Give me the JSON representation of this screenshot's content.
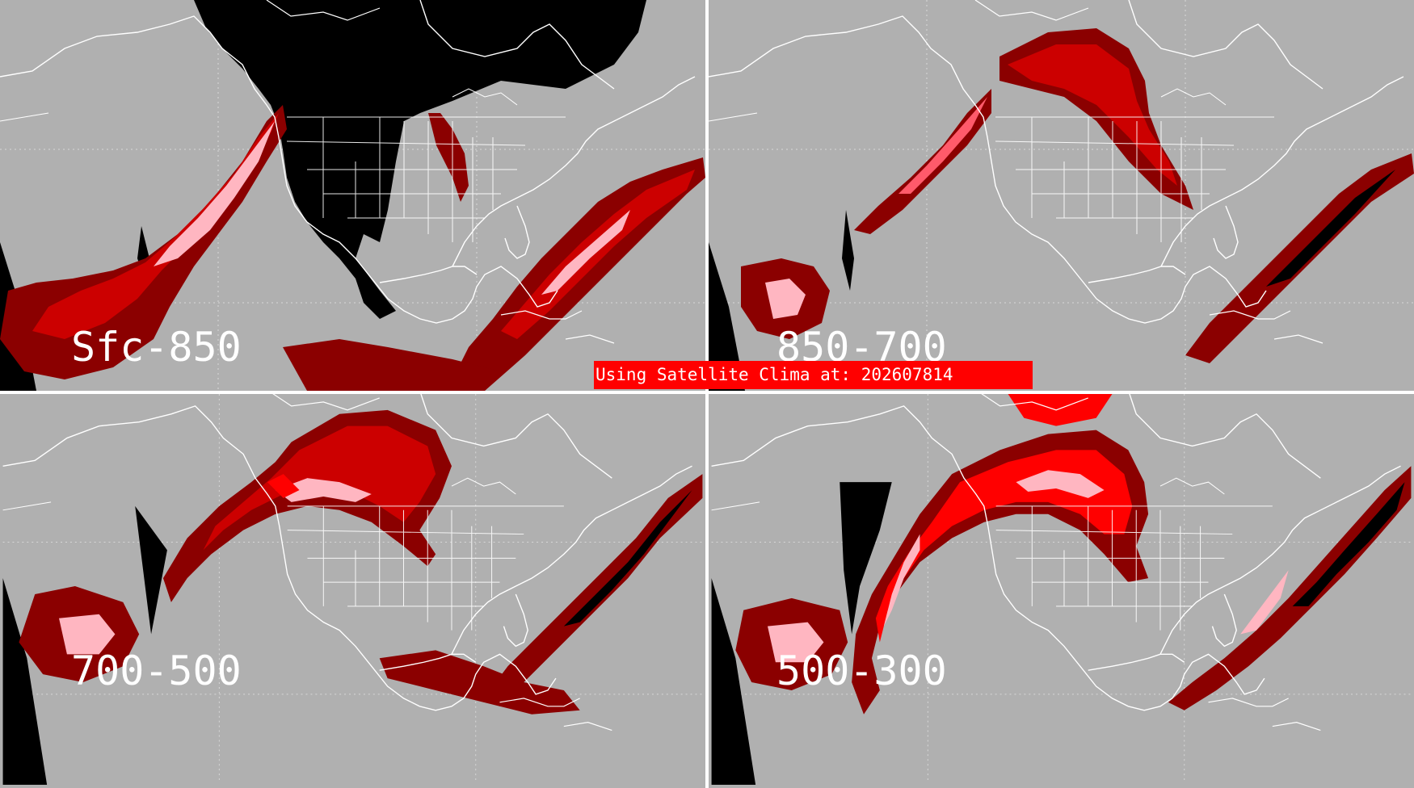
{
  "colors": {
    "background": "#b0b0b0",
    "divider": "#ffffff",
    "coastline": "#ffffff",
    "cloud_dark": "#8b0000",
    "cloud_mid": "#cc0000",
    "cloud_bright": "#ff0000",
    "cloud_light": "#ffb6c1",
    "cloud_faint": "#8c7a7a",
    "no_data": "#000000",
    "banner_bg": "#ff0000",
    "banner_text": "#ffffff"
  },
  "panels": [
    {
      "id": "sfc-850",
      "label": "Sfc-850"
    },
    {
      "id": "850-700",
      "label": "850-700"
    },
    {
      "id": "700-500",
      "label": "700-500"
    },
    {
      "id": "500-300",
      "label": "500-300"
    }
  ],
  "banner": {
    "text": "Using Satellite Clima at: 202607814"
  }
}
